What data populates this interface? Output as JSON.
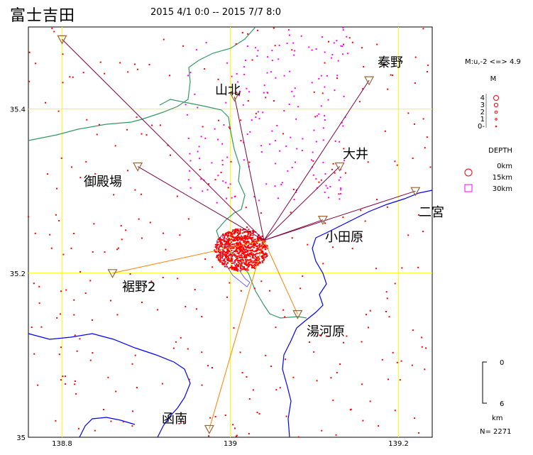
{
  "header": {
    "title": "富士吉田",
    "time_range": "2015 4/1 0:0 -- 2015 7/7 8:0"
  },
  "axes": {
    "x_ticks": [
      {
        "value": 138.8,
        "label": "138.8"
      },
      {
        "value": 139.0,
        "label": "139"
      },
      {
        "value": 139.2,
        "label": "139.2"
      }
    ],
    "y_ticks": [
      {
        "value": 35.4,
        "label": "35.4"
      },
      {
        "value": 35.2,
        "label": "35.2"
      },
      {
        "value": 35.0,
        "label": "35"
      }
    ],
    "lon_range": [
      138.76,
      139.24
    ],
    "lat_range": [
      35.0,
      35.5
    ]
  },
  "epicenter": {
    "lon": 139.04,
    "lat": 35.24
  },
  "stations": [
    {
      "name": "山北",
      "lon": 139.005,
      "lat": 35.415
    },
    {
      "name": "秦野",
      "lon": 139.165,
      "lat": 35.435
    },
    {
      "name": "大井",
      "lon": 139.13,
      "lat": 35.33
    },
    {
      "name": "二宮",
      "lon": 139.22,
      "lat": 35.3
    },
    {
      "name": "小田原",
      "lon": 139.11,
      "lat": 35.265
    },
    {
      "name": "御殿場",
      "lon": 138.89,
      "lat": 35.33
    },
    {
      "name": "裾野2",
      "lon": 138.86,
      "lat": 35.2
    },
    {
      "name": "湯河原",
      "lon": 139.08,
      "lat": 35.15
    },
    {
      "name": "函南",
      "lon": 138.975,
      "lat": 35.01
    },
    {
      "name": "",
      "lon": 138.8,
      "lat": 35.485
    }
  ],
  "legend": {
    "magnitude_header": "M:u,-2 <=> 4.9",
    "m_label": "M",
    "m_values": [
      "4",
      "3",
      "2",
      "1",
      "0-"
    ],
    "depth_header": "DEPTH",
    "depth_values": [
      {
        "label": "0km",
        "color": "#ff0000"
      },
      {
        "label": "15km",
        "color": "#ff0000"
      },
      {
        "label": "30km",
        "color": "#ff00ff"
      }
    ],
    "scale_values": [
      "0",
      "6"
    ],
    "scale_unit": "km",
    "count": "N= 2271"
  },
  "colors": {
    "grid": "#ffff00",
    "coastline": "#0000ff",
    "prefecture_border": "#339966",
    "shallow_event": "#ff0000",
    "deep_event": "#ff00ff",
    "station_edge": "#996633",
    "ray_north": "#800040",
    "ray_south": "#ff8000"
  }
}
